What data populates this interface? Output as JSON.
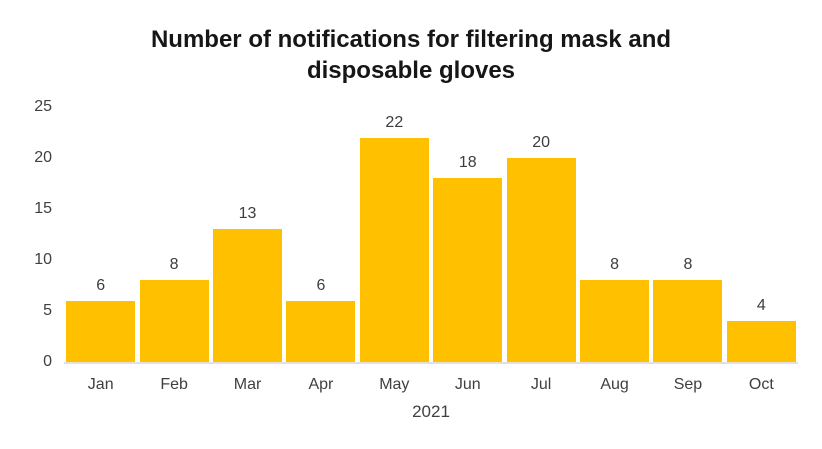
{
  "chart_data": {
    "type": "bar",
    "title": "Number of notifications for filtering mask and disposable gloves",
    "title_lines": [
      "Number of notifications for filtering mask and",
      "disposable gloves"
    ],
    "categories": [
      "Jan",
      "Feb",
      "Mar",
      "Apr",
      "May",
      "Jun",
      "Jul",
      "Aug",
      "Sep",
      "Oct"
    ],
    "values": [
      6,
      8,
      13,
      6,
      22,
      18,
      20,
      8,
      8,
      4
    ],
    "xlabel": "2021",
    "ylabel": "",
    "ylim": [
      0,
      25
    ],
    "yticks": [
      0,
      5,
      10,
      15,
      20,
      25
    ],
    "grid": false,
    "legend": "none",
    "data_labels": true,
    "colors": {
      "bar": "#FFC000",
      "tick_text": "#404040",
      "value_label_text": "#3d3d3d",
      "title_text": "#161616",
      "axis_line": "#e5dede"
    }
  }
}
